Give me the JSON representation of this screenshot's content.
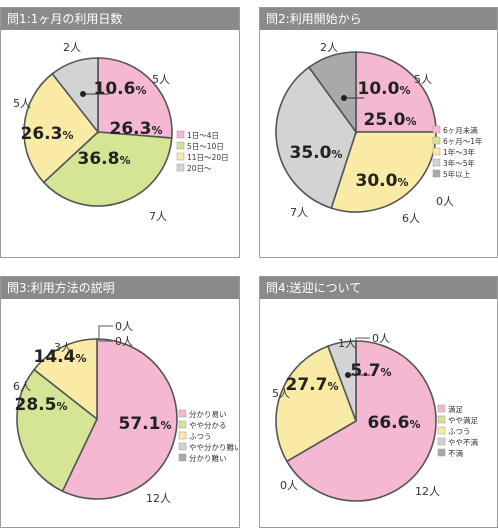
{
  "panels": [
    {
      "title": "問1:1ヶ月の利用日数"
    },
    {
      "title": "問2:利用開始から"
    },
    {
      "title": "問3:利用方法の説明"
    },
    {
      "title": "問4:送迎について"
    }
  ],
  "chart_data": [
    {
      "type": "pie",
      "title": "問1:1ヶ月の利用日数",
      "slices": [
        {
          "name": "1日～4日",
          "percent": "26.3",
          "count": "5人",
          "color": "#f4b8d2"
        },
        {
          "name": "5日～10日",
          "percent": "36.8",
          "count": "7人",
          "color": "#d4e595"
        },
        {
          "name": "11日～20日",
          "percent": "26.3",
          "count": "5人",
          "color": "#f9eba6"
        },
        {
          "name": "20日～",
          "percent": "10.6",
          "count": "2人",
          "color": "#d3d3d3"
        }
      ],
      "legend_position": "right"
    },
    {
      "type": "pie",
      "title": "問2:利用開始から",
      "slices": [
        {
          "name": "6ヶ月未満",
          "percent": "25.0",
          "count": "5人",
          "color": "#f4b8d2"
        },
        {
          "name": "6ヶ月～1年",
          "percent": "0",
          "count": "0人",
          "color": "#d4e595"
        },
        {
          "name": "1年～3年",
          "percent": "30.0",
          "count": "6人",
          "color": "#f9eba6"
        },
        {
          "name": "3年～5年",
          "percent": "35.0",
          "count": "7人",
          "color": "#d3d3d3"
        },
        {
          "name": "5年以上",
          "percent": "10.0",
          "count": "2人",
          "color": "#a9a9a9"
        }
      ],
      "legend_position": "right"
    },
    {
      "type": "pie",
      "title": "問3:利用方法の説明",
      "slices": [
        {
          "name": "分かり易い",
          "percent": "57.1",
          "count": "12人",
          "color": "#f4b8d2"
        },
        {
          "name": "やや分かる",
          "percent": "28.5",
          "count": "6人",
          "color": "#d4e595"
        },
        {
          "name": "ふつう",
          "percent": "14.4",
          "count": "3人",
          "color": "#f9eba6"
        },
        {
          "name": "やや分かり難い",
          "percent": "0",
          "count": "0人",
          "color": "#d3d3d3"
        },
        {
          "name": "分かり難い",
          "percent": "0",
          "count": "0人",
          "color": "#a9a9a9"
        }
      ],
      "legend_position": "right"
    },
    {
      "type": "pie",
      "title": "問4:送迎について",
      "slices": [
        {
          "name": "満足",
          "percent": "66.6",
          "count": "12人",
          "color": "#f4b8d2"
        },
        {
          "name": "やや満足",
          "percent": "0",
          "count": "0人",
          "color": "#d4e595"
        },
        {
          "name": "ふつう",
          "percent": "27.7",
          "count": "5人",
          "color": "#f9eba6"
        },
        {
          "name": "やや不満",
          "percent": "5.7",
          "count": "1人",
          "color": "#d3d3d3"
        },
        {
          "name": "不満",
          "percent": "0",
          "count": "0人",
          "color": "#a9a9a9"
        }
      ],
      "legend_position": "right"
    }
  ]
}
